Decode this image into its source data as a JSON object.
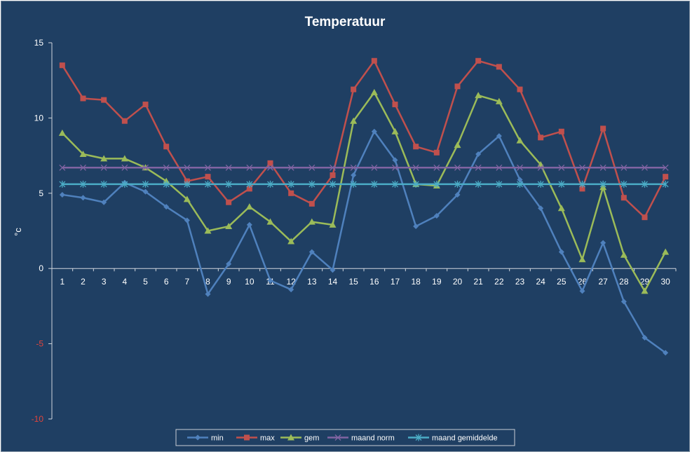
{
  "chart_data": {
    "type": "line",
    "title": "Temperatuur",
    "ylabel": "°c",
    "xlabel": "",
    "ylim": [
      -10,
      15
    ],
    "yticks": [
      "15",
      "10",
      "5",
      "0",
      "-5",
      "-10"
    ],
    "x": [
      "1",
      "2",
      "3",
      "4",
      "5",
      "6",
      "7",
      "8",
      "9",
      "10",
      "11",
      "12",
      "13",
      "14",
      "15",
      "16",
      "17",
      "18",
      "19",
      "20",
      "21",
      "22",
      "23",
      "24",
      "25",
      "26",
      "27",
      "28",
      "29",
      "30"
    ],
    "grid": false,
    "legend": "bottom",
    "series": [
      {
        "name": "min",
        "color": "#4f81bd",
        "marker": "diamond",
        "values": [
          4.9,
          4.7,
          4.4,
          5.7,
          5.1,
          4.1,
          3.2,
          -1.7,
          0.3,
          2.9,
          -0.8,
          -1.4,
          1.1,
          -0.1,
          6.2,
          9.1,
          7.2,
          2.8,
          3.5,
          4.9,
          7.6,
          8.8,
          5.9,
          4.0,
          1.1,
          -1.5,
          1.7,
          -2.2,
          -4.6,
          -5.6
        ]
      },
      {
        "name": "max",
        "color": "#c0504d",
        "marker": "square",
        "values": [
          13.5,
          11.3,
          11.2,
          9.8,
          10.9,
          8.1,
          5.8,
          6.1,
          4.4,
          5.3,
          7.0,
          5.0,
          4.3,
          6.2,
          11.9,
          13.8,
          10.9,
          8.1,
          7.7,
          12.1,
          13.8,
          13.4,
          11.9,
          8.7,
          9.1,
          5.3,
          9.3,
          4.7,
          3.4,
          6.1
        ]
      },
      {
        "name": "gem",
        "color": "#9bbb59",
        "marker": "triangle",
        "values": [
          9.0,
          7.6,
          7.3,
          7.3,
          6.7,
          5.8,
          4.6,
          2.5,
          2.8,
          4.1,
          3.1,
          1.8,
          3.1,
          2.9,
          9.8,
          11.7,
          9.1,
          5.6,
          5.5,
          8.2,
          11.5,
          11.1,
          8.5,
          6.9,
          4.0,
          0.6,
          5.4,
          0.9,
          -1.5,
          1.1
        ]
      },
      {
        "name": "maand norm",
        "color": "#8064a2",
        "marker": "x",
        "values": [
          6.7,
          6.7,
          6.7,
          6.7,
          6.7,
          6.7,
          6.7,
          6.7,
          6.7,
          6.7,
          6.7,
          6.7,
          6.7,
          6.7,
          6.7,
          6.7,
          6.7,
          6.7,
          6.7,
          6.7,
          6.7,
          6.7,
          6.7,
          6.7,
          6.7,
          6.7,
          6.7,
          6.7,
          6.7,
          6.7
        ]
      },
      {
        "name": "maand gemiddelde",
        "color": "#4bacc6",
        "marker": "star",
        "values": [
          5.6,
          5.6,
          5.6,
          5.6,
          5.6,
          5.6,
          5.6,
          5.6,
          5.6,
          5.6,
          5.6,
          5.6,
          5.6,
          5.6,
          5.6,
          5.6,
          5.6,
          5.6,
          5.6,
          5.6,
          5.6,
          5.6,
          5.6,
          5.6,
          5.6,
          5.6,
          5.6,
          5.6,
          5.6,
          5.6
        ]
      }
    ]
  }
}
